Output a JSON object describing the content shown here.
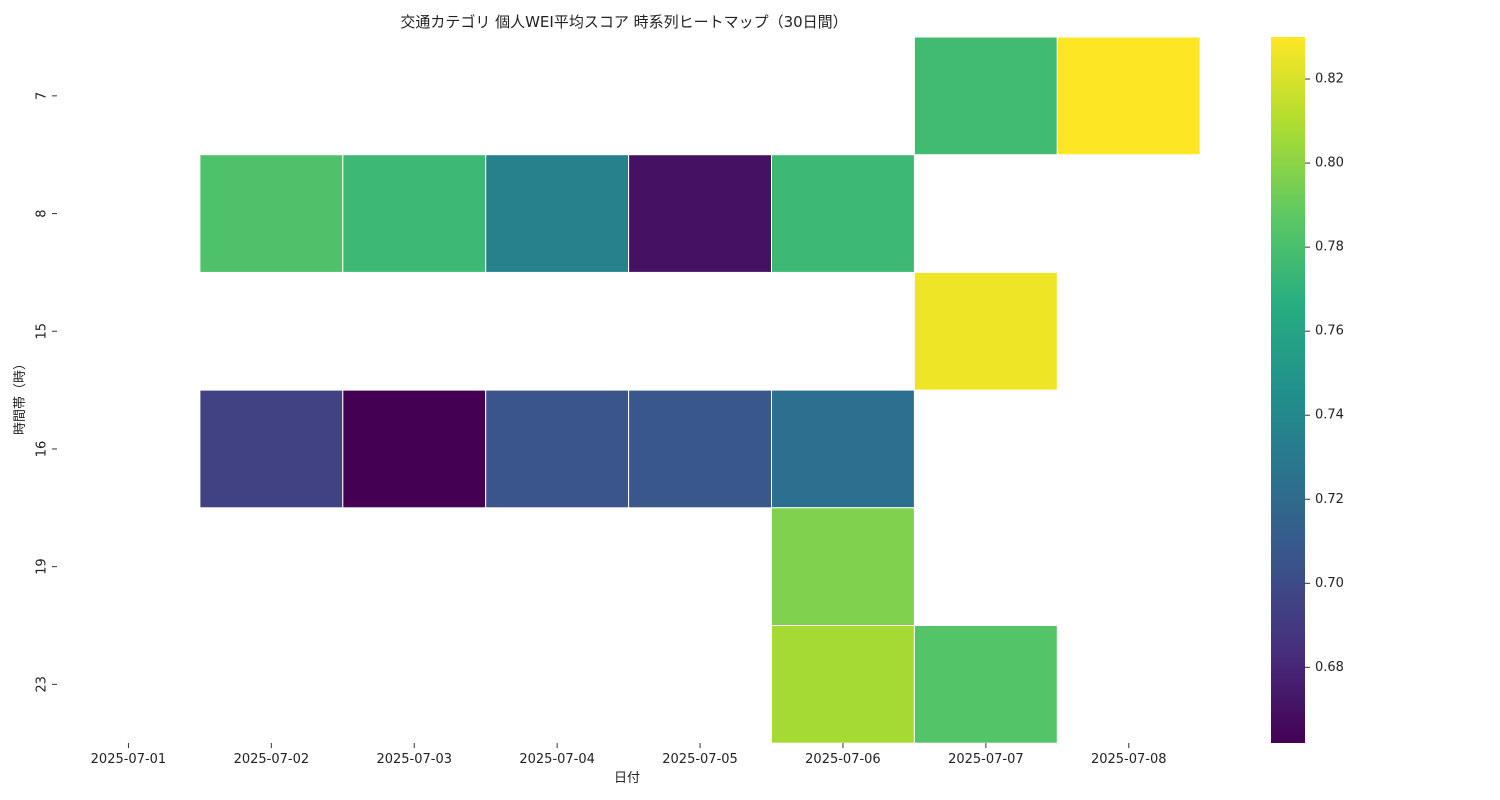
{
  "chart_data": {
    "type": "heatmap",
    "title": "交通カテゴリ 個人WEI平均スコア 時系列ヒートマップ（30日間）",
    "xlabel": "日付",
    "ylabel": "時間帯（時）",
    "x_categories": [
      "2025-07-01",
      "2025-07-02",
      "2025-07-03",
      "2025-07-04",
      "2025-07-05",
      "2025-07-06",
      "2025-07-07",
      "2025-07-08"
    ],
    "y_categories": [
      "7",
      "8",
      "15",
      "16",
      "19",
      "23"
    ],
    "values": [
      [
        null,
        null,
        null,
        null,
        null,
        null,
        0.777,
        0.83
      ],
      [
        null,
        0.782,
        0.775,
        0.735,
        0.67,
        0.775,
        null,
        null
      ],
      [
        null,
        null,
        null,
        null,
        null,
        null,
        0.826,
        null
      ],
      [
        null,
        0.695,
        0.662,
        0.706,
        0.707,
        0.723,
        null,
        null
      ],
      [
        null,
        null,
        null,
        null,
        null,
        0.797,
        null,
        null
      ],
      [
        null,
        null,
        null,
        null,
        null,
        0.807,
        0.784,
        null
      ]
    ],
    "colorbar": {
      "min": 0.662,
      "max": 0.83,
      "ticks": [
        0.68,
        0.7,
        0.72,
        0.74,
        0.76,
        0.78,
        0.8,
        0.82
      ],
      "tick_labels": [
        "0.68",
        "0.70",
        "0.72",
        "0.74",
        "0.76",
        "0.78",
        "0.80",
        "0.82"
      ],
      "colormap": "viridis"
    },
    "cell_border_color": "#ffffff",
    "grid": false
  }
}
